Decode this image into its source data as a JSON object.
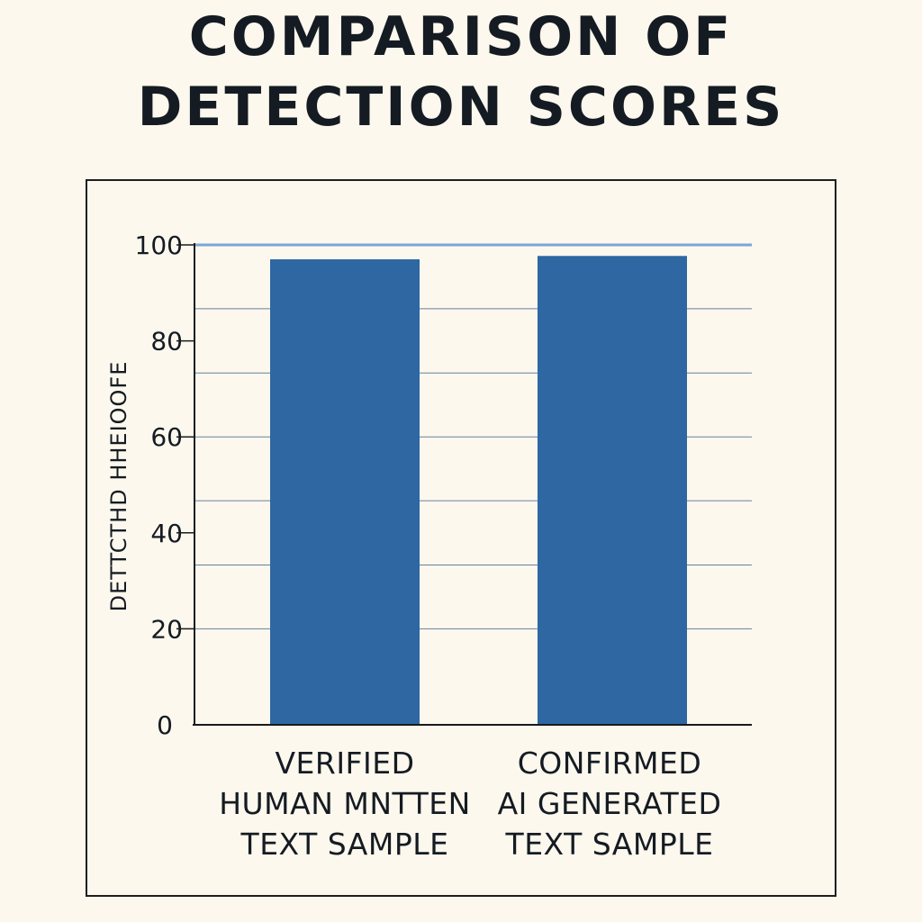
{
  "chart_data": {
    "type": "bar",
    "title": "COMPARISON OF DETECTION SCORES",
    "title_lines": [
      "COMPARISON OF",
      "DETECTION SCORES"
    ],
    "ylabel": "DETTCTHD HHEIOOFE",
    "xlabel": "",
    "ylim": [
      0,
      100
    ],
    "ytick_values": [
      0,
      20,
      40,
      60,
      80,
      100
    ],
    "ytick_labels": [
      "0",
      "20",
      "40",
      "60",
      "80",
      "100"
    ],
    "gridlines": [
      20,
      33.3,
      46.7,
      60,
      73.3,
      86.7
    ],
    "categories": [
      {
        "lines": [
          "VERIFIED",
          "HUMAN MNTTEN",
          "TEXT SAMPLE"
        ]
      },
      {
        "lines": [
          "CONFIRMED",
          "AI GENERATED",
          "TEXT SAMPLE"
        ]
      }
    ],
    "values": [
      97,
      97.7
    ],
    "grid": true
  },
  "colors": {
    "background": "#fcf8ee",
    "bar": "#2e67a1",
    "text": "#151b22",
    "gridline": "#6a7f9c",
    "top_line": "#7aa6d6"
  }
}
